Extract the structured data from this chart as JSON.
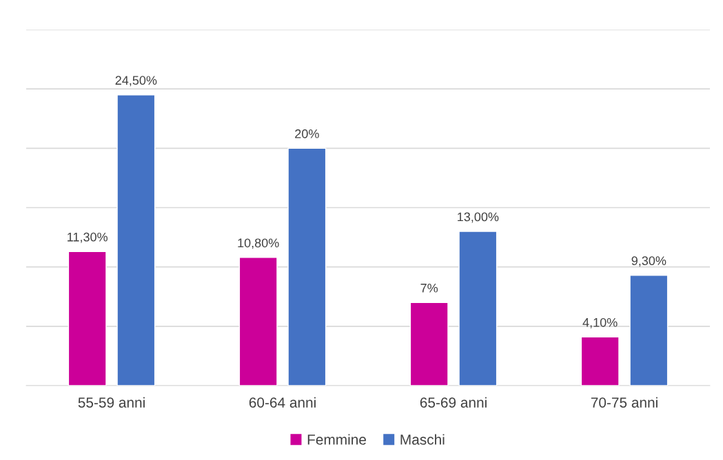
{
  "chart_data": {
    "type": "bar",
    "categories": [
      "55-59 anni",
      "60-64 anni",
      "65-69 anni",
      "70-75 anni"
    ],
    "series": [
      {
        "name": "Femmine",
        "color": "#cc0099",
        "values": [
          11.3,
          10.8,
          7,
          4.1
        ],
        "value_labels": [
          "11,30%",
          "10,80%",
          "7%",
          "4,10%"
        ]
      },
      {
        "name": "Maschi",
        "color": "#4472c4",
        "values": [
          24.5,
          20,
          13,
          9.3
        ],
        "value_labels": [
          "24,50%",
          "20%",
          "13,00%",
          "9,30%"
        ]
      }
    ],
    "ylim": [
      0,
      30
    ],
    "yticks": [
      {
        "value": 0,
        "label": null
      },
      {
        "value": 5,
        "label": null
      },
      {
        "value": 10,
        "label": null
      },
      {
        "value": 15,
        "label": null
      },
      {
        "value": 20,
        "label": null
      },
      {
        "value": 25,
        "label": null
      },
      {
        "value": 30,
        "label": null
      }
    ],
    "tick_labels": "x",
    "grid": "y",
    "legend": "bottom"
  }
}
